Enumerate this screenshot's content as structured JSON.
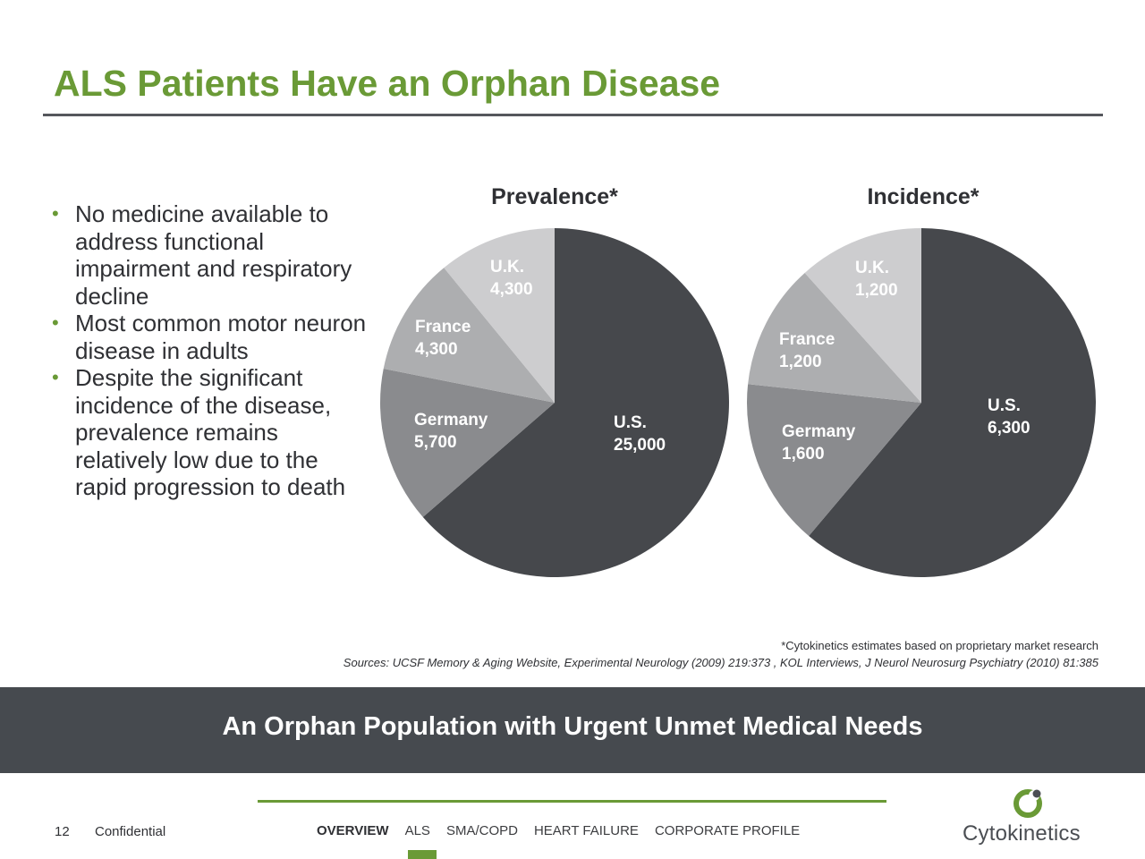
{
  "slide": {
    "title": "ALS Patients Have an Orphan Disease",
    "bullets": [
      "No medicine available to address functional impairment and respiratory decline",
      "Most common motor neuron disease in adults",
      "Despite the significant incidence of the disease, prevalence remains relatively low due to the rapid progression to death"
    ],
    "bullet_glyph": "•",
    "footnote": "*Cytokinetics estimates based on proprietary market research",
    "sources": "Sources: UCSF Memory & Aging Website, Experimental Neurology (2009) 219:373 , KOL Interviews, J Neurol Neurosurg Psychiatry (2010) 81:385",
    "banner": "An Orphan Population with Urgent Unmet Medical Needs"
  },
  "footer": {
    "page_number": "12",
    "confidential": "Confidential",
    "nav": [
      "OVERVIEW",
      "ALS",
      "SMA/COPD",
      "HEART FAILURE",
      "CORPORATE PROFILE"
    ],
    "active_nav": "OVERVIEW",
    "logo_text": "Cytokinetics"
  },
  "colors": {
    "title_green": "#6a9a36",
    "us": "#46484c",
    "germany": "#8a8b8e",
    "france": "#adaeb0",
    "uk": "#cdcdcf",
    "banner": "#464a4f"
  },
  "chart_data": [
    {
      "type": "pie",
      "title": "Prevalence*",
      "categories": [
        "U.S.",
        "Germany",
        "France",
        "U.K."
      ],
      "values": [
        25000,
        5700,
        4300,
        4300
      ],
      "value_labels": [
        "25,000",
        "5,700",
        "4,300",
        "4,300"
      ]
    },
    {
      "type": "pie",
      "title": "Incidence*",
      "categories": [
        "U.S.",
        "Germany",
        "France",
        "U.K."
      ],
      "values": [
        6300,
        1600,
        1200,
        1200
      ],
      "value_labels": [
        "6,300",
        "1,600",
        "1,200",
        "1,200"
      ]
    }
  ]
}
